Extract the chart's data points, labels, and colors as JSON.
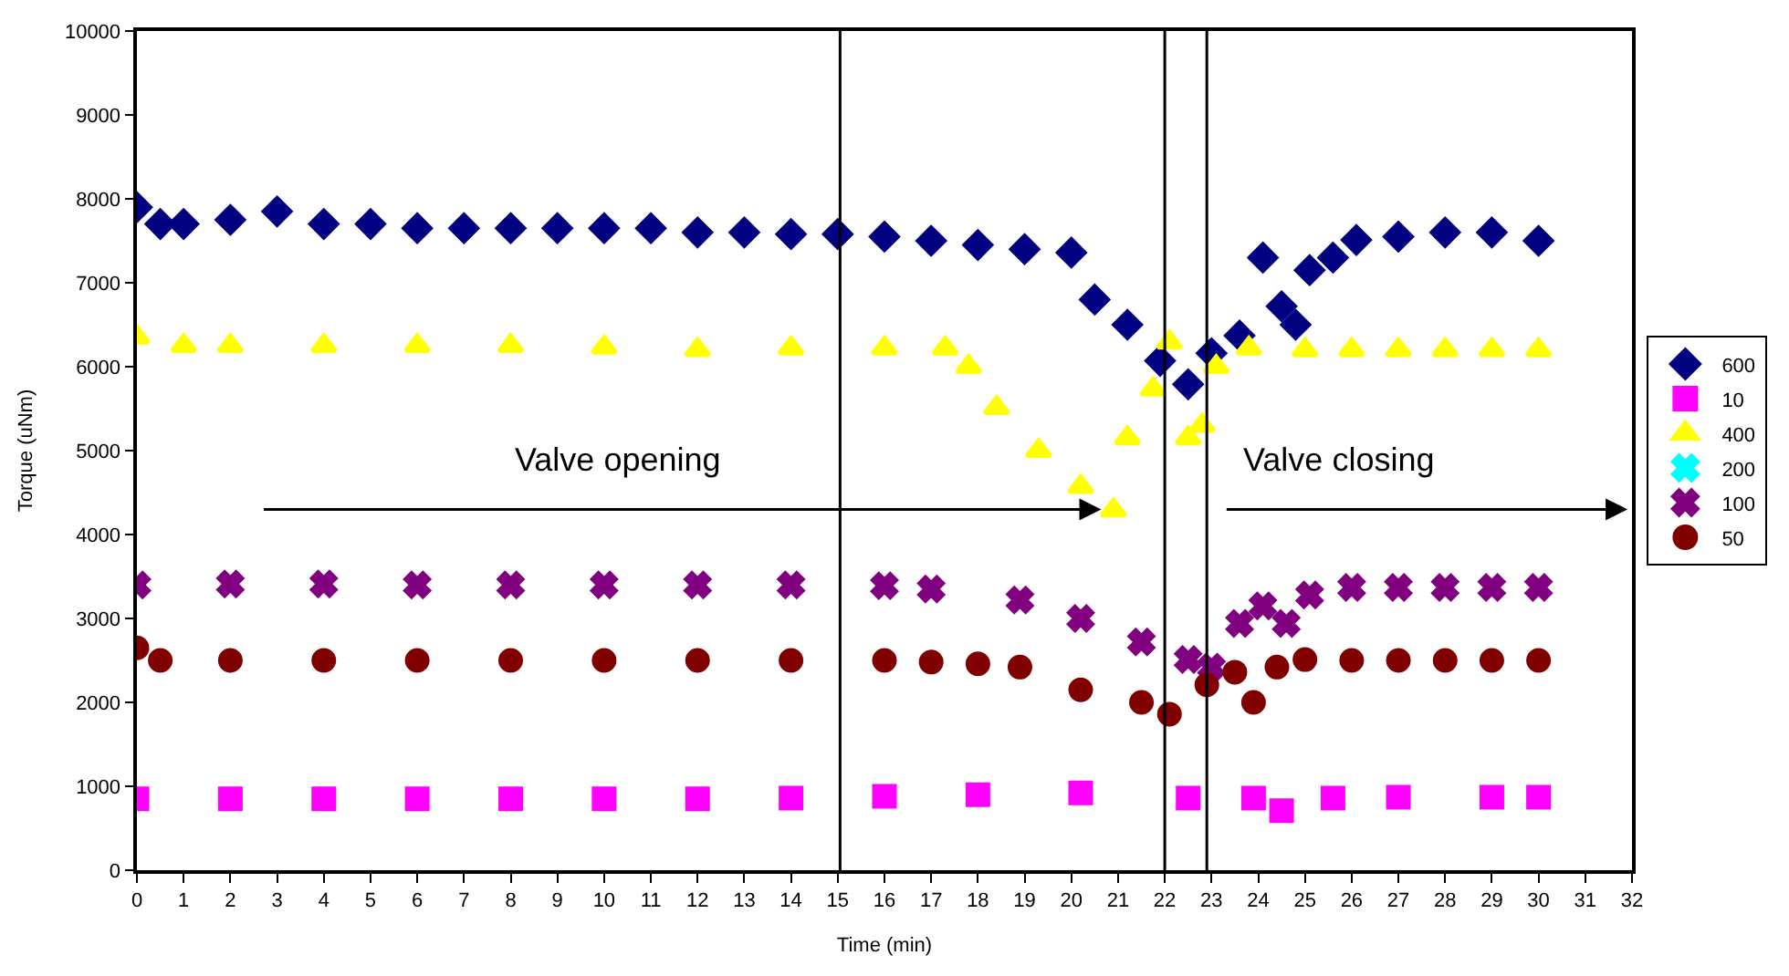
{
  "chart_data": {
    "type": "scatter",
    "xlabel": "Time (min)",
    "ylabel": "Torque (uNm)",
    "xlim": [
      0,
      32
    ],
    "xticks": [
      0,
      1,
      2,
      3,
      4,
      5,
      6,
      7,
      8,
      9,
      10,
      11,
      12,
      13,
      14,
      15,
      16,
      17,
      18,
      19,
      20,
      21,
      22,
      23,
      24,
      25,
      26,
      27,
      28,
      29,
      30,
      31,
      32
    ],
    "ylim": [
      0,
      10000
    ],
    "yticks": [
      0,
      1000,
      2000,
      3000,
      4000,
      5000,
      6000,
      7000,
      8000,
      9000,
      10000
    ],
    "grid": false,
    "legend": "right",
    "annotations": [
      "Valve opening",
      "Valve closing"
    ],
    "ref_lines": [
      {
        "axis": "x",
        "value": 15.05,
        "color": "#000000"
      },
      {
        "axis": "x",
        "value": 22,
        "color": "#000000"
      },
      {
        "axis": "x",
        "value": 22.9,
        "color": "#000000"
      }
    ],
    "series": [
      {
        "name": "600",
        "color": "#000080",
        "marker": "diamond",
        "x": [
          0,
          0.5,
          1,
          2,
          3,
          4,
          5,
          6,
          7,
          8,
          9,
          10,
          11,
          12,
          13,
          14,
          15,
          16,
          17,
          18,
          19,
          20,
          20.5,
          21.2,
          21.9,
          22.5,
          23,
          23.6,
          24.1,
          24.5,
          24.8,
          25.1,
          25.6,
          26.1,
          27,
          28,
          29,
          30
        ],
        "values": [
          7900,
          7700,
          7700,
          7750,
          7850,
          7700,
          7700,
          7650,
          7650,
          7650,
          7650,
          7650,
          7650,
          7600,
          7600,
          7580,
          7580,
          7550,
          7500,
          7450,
          7400,
          7360,
          6800,
          6500,
          6070,
          5790,
          6160,
          6370,
          7300,
          6720,
          6500,
          7150,
          7300,
          7510,
          7550,
          7600,
          7600,
          7500
        ]
      },
      {
        "name": "10",
        "color": "#ff00ff",
        "marker": "square",
        "x": [
          0,
          2,
          4,
          6,
          8,
          10,
          12,
          14,
          16,
          18,
          20.2,
          22.5,
          23.9,
          24.5,
          25.6,
          27,
          29,
          30
        ],
        "values": [
          850,
          850,
          850,
          850,
          850,
          850,
          850,
          860,
          880,
          900,
          920,
          860,
          860,
          710,
          860,
          870,
          870,
          870
        ]
      },
      {
        "name": "400",
        "color": "#ffff00",
        "marker": "triangle",
        "x": [
          0,
          1,
          2,
          4,
          6,
          8,
          10,
          12,
          14,
          16,
          17.3,
          17.8,
          18.4,
          19.3,
          20.2,
          20.9,
          21.2,
          21.75,
          22.1,
          22.5,
          22.8,
          23.1,
          23.8,
          25,
          26,
          27,
          28,
          29,
          30
        ],
        "values": [
          6350,
          6250,
          6250,
          6250,
          6250,
          6250,
          6230,
          6200,
          6220,
          6220,
          6220,
          6000,
          5510,
          5000,
          4570,
          4290,
          5150,
          5730,
          6290,
          5150,
          5300,
          6000,
          6220,
          6200,
          6200,
          6200,
          6200,
          6200,
          6200
        ]
      },
      {
        "name": "200",
        "color": "#00ffff",
        "marker": "cross"
      },
      {
        "name": "100",
        "color": "#800080",
        "marker": "cross",
        "x": [
          0,
          2,
          4,
          6,
          8,
          10,
          12,
          14,
          16,
          17,
          18.9,
          20.2,
          21.5,
          22.5,
          23,
          23.6,
          24.1,
          24.6,
          25.1,
          26,
          27,
          28,
          29,
          30
        ],
        "values": [
          3400,
          3410,
          3410,
          3400,
          3400,
          3400,
          3400,
          3400,
          3390,
          3350,
          3220,
          3000,
          2720,
          2510,
          2420,
          2940,
          3150,
          2940,
          3280,
          3370,
          3370,
          3370,
          3370,
          3370
        ]
      },
      {
        "name": "50",
        "color": "#800000",
        "marker": "circle",
        "x": [
          0,
          0.5,
          2,
          4,
          6,
          8,
          10,
          12,
          14,
          16,
          17,
          18,
          18.9,
          20.2,
          21.5,
          22.1,
          22.9,
          23.5,
          23.9,
          24.4,
          25,
          26,
          27,
          28,
          29,
          30
        ],
        "values": [
          2650,
          2500,
          2500,
          2500,
          2500,
          2500,
          2500,
          2500,
          2500,
          2500,
          2480,
          2460,
          2420,
          2150,
          2000,
          1860,
          2210,
          2360,
          2000,
          2420,
          2510,
          2500,
          2500,
          2500,
          2500,
          2500
        ]
      }
    ]
  }
}
